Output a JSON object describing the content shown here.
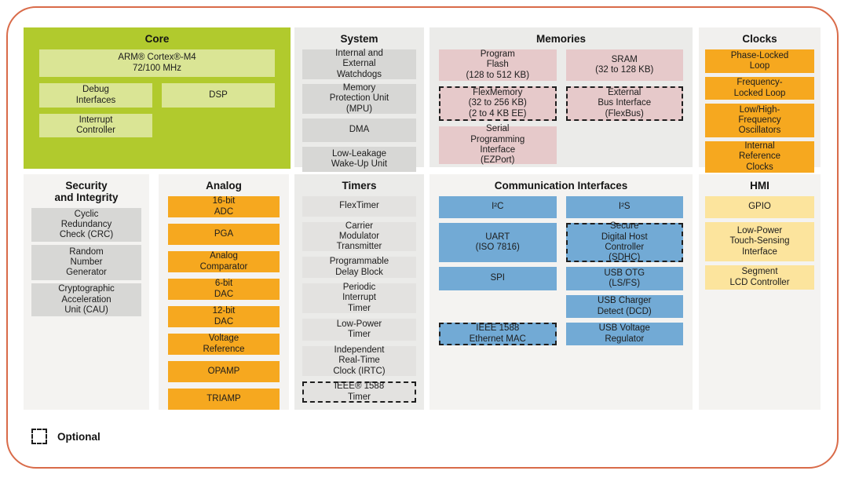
{
  "legend": {
    "label": "Optional"
  },
  "colors": {
    "frame_border": "#d96b49",
    "core_panel_bg": "#b1ca2d",
    "core_block": "#dae595",
    "gray_panel_bg": "#ebebe9",
    "light_panel_bg": "#f4f3f1",
    "gray_block": "#d7d7d5",
    "timers_block": "#e3e2e0",
    "memory_block": "#e6c9ca",
    "orange_block": "#f6a81f",
    "blue_block": "#72aad5",
    "yellow_block": "#fce49d"
  },
  "panels": {
    "core": {
      "title": "Core",
      "blocks": [
        {
          "label": "ARM® Cortex®-M4\n72/100 MHz"
        },
        {
          "label": "Debug\nInterfaces"
        },
        {
          "label": "DSP"
        },
        {
          "label": "Interrupt\nController"
        }
      ]
    },
    "system": {
      "title": "System",
      "blocks": [
        {
          "label": "Internal and\nExternal\nWatchdogs"
        },
        {
          "label": "Memory\nProtection Unit\n(MPU)"
        },
        {
          "label": "DMA"
        },
        {
          "label": "Low-Leakage\nWake-Up Unit"
        }
      ]
    },
    "memories": {
      "title": "Memories",
      "left": [
        {
          "label": "Program\nFlash\n(128 to 512 KB)"
        },
        {
          "label": "FlexMemory\n(32 to 256 KB)\n(2 to 4 KB EE)",
          "optional": true
        },
        {
          "label": "Serial\nProgramming\nInterface\n(EZPort)"
        }
      ],
      "right": [
        {
          "label": "SRAM\n(32 to 128 KB)"
        },
        {
          "label": "External\nBus Interface\n(FlexBus)",
          "optional": true
        }
      ]
    },
    "clocks": {
      "title": "Clocks",
      "blocks": [
        {
          "label": "Phase-Locked\nLoop"
        },
        {
          "label": "Frequency-\nLocked Loop"
        },
        {
          "label": "Low/High-\nFrequency\nOscillators"
        },
        {
          "label": "Internal\nReference\nClocks"
        }
      ]
    },
    "security": {
      "title": "Security\nand Integrity",
      "blocks": [
        {
          "label": "Cyclic\nRedundancy\nCheck (CRC)"
        },
        {
          "label": "Random\nNumber\nGenerator"
        },
        {
          "label": "Cryptographic\nAcceleration\nUnit (CAU)"
        }
      ]
    },
    "analog": {
      "title": "Analog",
      "blocks": [
        {
          "label": "16-bit\nADC"
        },
        {
          "label": "PGA"
        },
        {
          "label": "Analog\nComparator"
        },
        {
          "label": "6-bit\nDAC"
        },
        {
          "label": "12-bit\nDAC"
        },
        {
          "label": "Voltage\nReference"
        },
        {
          "label": "OPAMP"
        },
        {
          "label": "TRIAMP"
        }
      ]
    },
    "timers": {
      "title": "Timers",
      "blocks": [
        {
          "label": "FlexTimer"
        },
        {
          "label": "Carrier\nModulator\nTransmitter"
        },
        {
          "label": "Programmable\nDelay Block"
        },
        {
          "label": "Periodic\nInterrupt\nTimer"
        },
        {
          "label": "Low-Power\nTimer"
        },
        {
          "label": "Independent\nReal-Time\nClock (IRTC)"
        },
        {
          "label": "IEEE® 1588\nTimer",
          "optional": true
        }
      ]
    },
    "comm": {
      "title": "Communication Interfaces",
      "left": [
        {
          "label": "I²C"
        },
        {
          "label": "UART\n(ISO 7816)"
        },
        {
          "label": "SPI"
        },
        {
          "label": "IEEE 1588\nEthernet MAC",
          "optional": true
        }
      ],
      "right": [
        {
          "label": "I²S"
        },
        {
          "label": "Secure\nDigital Host\nController\n(SDHC)",
          "optional": true
        },
        {
          "label": "USB OTG\n(LS/FS)"
        },
        {
          "label": "USB Charger\nDetect (DCD)"
        },
        {
          "label": "USB Voltage\nRegulator"
        }
      ]
    },
    "hmi": {
      "title": "HMI",
      "blocks": [
        {
          "label": "GPIO"
        },
        {
          "label": "Low-Power\nTouch-Sensing\nInterface"
        },
        {
          "label": "Segment\nLCD Controller"
        }
      ]
    }
  }
}
